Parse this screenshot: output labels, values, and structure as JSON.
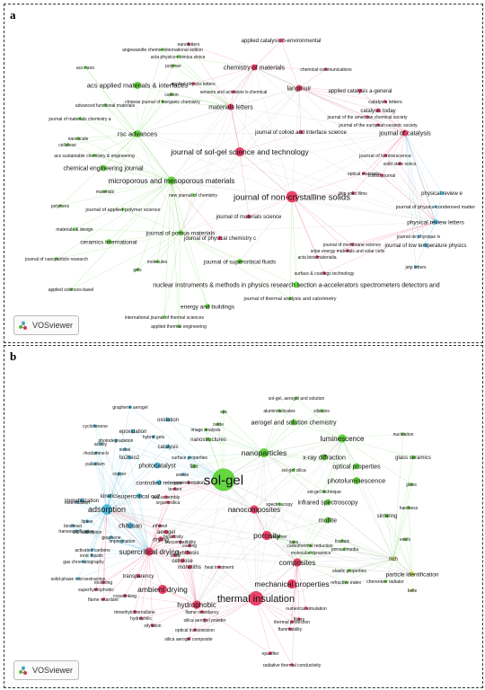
{
  "panels": [
    {
      "letter": "a",
      "brand": "VOSviewer",
      "colors": {
        "red": "#e8305a",
        "green": "#55d12e",
        "blue": "#41b6dc"
      },
      "labels": [
        {
          "t": "nanoletters",
          "c": "red",
          "s": 5
        },
        {
          "t": "applied catalysis b-environmental",
          "c": "red",
          "s": 6
        },
        {
          "t": "angewandte chemie-international edition",
          "c": "green",
          "s": 5
        },
        {
          "t": "acta physico-chimica sinica",
          "c": "green",
          "s": 5
        },
        {
          "t": "polymer",
          "c": "green",
          "s": 5
        },
        {
          "t": "acs nano",
          "c": "green",
          "s": 5
        },
        {
          "t": "chemistry of materials",
          "c": "red",
          "s": 7
        },
        {
          "t": "chemical communications",
          "c": "red",
          "s": 5
        },
        {
          "t": "acs applied materials & interfaces",
          "c": "green",
          "s": 7.5
        },
        {
          "t": "applied physics letters",
          "c": "red",
          "s": 5
        },
        {
          "t": "langmuir",
          "c": "red",
          "s": 7
        },
        {
          "t": "applied catalysis a-general",
          "c": "red",
          "s": 6
        },
        {
          "t": "carbon",
          "c": "green",
          "s": 5
        },
        {
          "t": "sensors and actuators b-chemical",
          "c": "red",
          "s": 5
        },
        {
          "t": "chinese journal of inorganic chemistry",
          "c": "green",
          "s": 5
        },
        {
          "t": "catalysis letters",
          "c": "red",
          "s": 5.5
        },
        {
          "t": "catalysis today",
          "c": "red",
          "s": 6
        },
        {
          "t": "advanced functional materials",
          "c": "green",
          "s": 5
        },
        {
          "t": "materials letters",
          "c": "red",
          "s": 7
        },
        {
          "t": "journal of the american chemical society",
          "c": "red",
          "s": 5
        },
        {
          "t": "journal of materials chemistry a",
          "c": "green",
          "s": 5
        },
        {
          "t": "journal of the european ceramic society",
          "c": "red",
          "s": 5
        },
        {
          "t": "rsc advances",
          "c": "green",
          "s": 7.5
        },
        {
          "t": "journal of colloid and interface science",
          "c": "red",
          "s": 6
        },
        {
          "t": "journal of catalysis",
          "c": "red",
          "s": 7
        },
        {
          "t": "nanoscale",
          "c": "green",
          "s": 5
        },
        {
          "t": "cellulose",
          "c": "green",
          "s": 5
        },
        {
          "t": "acs sustainable chemistry & engineering",
          "c": "green",
          "s": 5
        },
        {
          "t": "journal of sol-gel science and technology",
          "c": "red",
          "s": 8.5
        },
        {
          "t": "journal of luminescence",
          "c": "red",
          "s": 5.5
        },
        {
          "t": "solid state ionics",
          "c": "red",
          "s": 5
        },
        {
          "t": "chemical engineering journal",
          "c": "green",
          "s": 7
        },
        {
          "t": "optical materials",
          "c": "red",
          "s": 5
        },
        {
          "t": "colloid journal",
          "c": "red",
          "s": 5
        },
        {
          "t": "microporous and mesoporous materials",
          "c": "green",
          "s": 8
        },
        {
          "t": "physical review e",
          "c": "blue",
          "s": 6
        },
        {
          "t": "materials",
          "c": "green",
          "s": 5
        },
        {
          "t": "journal of non-crystalline solids",
          "c": "red",
          "s": 9.5
        },
        {
          "t": "new journal of chemistry",
          "c": "green",
          "s": 5
        },
        {
          "t": "journal of physics-condensed matter",
          "c": "blue",
          "s": 5.5
        },
        {
          "t": "polymers",
          "c": "green",
          "s": 5
        },
        {
          "t": "journal of applied polymer science",
          "c": "green",
          "s": 5.5
        },
        {
          "t": "thin solid films",
          "c": "red",
          "s": 5
        },
        {
          "t": "journal of materials science",
          "c": "red",
          "s": 6
        },
        {
          "t": "physical review letters",
          "c": "blue",
          "s": 6.5
        },
        {
          "t": "journal of porous materials",
          "c": "green",
          "s": 6.5
        },
        {
          "t": "materials & design",
          "c": "green",
          "s": 5
        },
        {
          "t": "journal de physique iv",
          "c": "blue",
          "s": 5
        },
        {
          "t": "journal of physical chemistry c",
          "c": "red",
          "s": 6
        },
        {
          "t": "ceramics international",
          "c": "green",
          "s": 6.5
        },
        {
          "t": "journal of membrane science",
          "c": "red",
          "s": 5
        },
        {
          "t": "journal of low temperature physics",
          "c": "blue",
          "s": 6
        },
        {
          "t": "journal of nanoparticle research",
          "c": "green",
          "s": 5
        },
        {
          "t": "journal of supercritical fluids",
          "c": "green",
          "s": 6.5
        },
        {
          "t": "solar energy materials and solar cells",
          "c": "red",
          "s": 5
        },
        {
          "t": "molecules",
          "c": "green",
          "s": 5
        },
        {
          "t": "acta bioiomaterialia",
          "c": "red",
          "s": 5
        },
        {
          "t": "jetp letters",
          "c": "blue",
          "s": 5
        },
        {
          "t": "gels",
          "c": "green",
          "s": 5
        },
        {
          "t": "surface & coatings technology",
          "c": "red",
          "s": 5
        },
        {
          "t": "applied sciences-basel",
          "c": "green",
          "s": 5
        },
        {
          "t": "nuclear instruments & methods in physics research section a-accelerators spectrometers detectors and",
          "c": "green",
          "s": 7
        },
        {
          "t": "journal of thermal analysis and calorimetry",
          "c": "green",
          "s": 5.5
        },
        {
          "t": "energy and buildings",
          "c": "green",
          "s": 6.5
        },
        {
          "t": "international journal of thermal sciences",
          "c": "green",
          "s": 5
        },
        {
          "t": "applied thermal engineering",
          "c": "green",
          "s": 5
        }
      ]
    },
    {
      "letter": "b",
      "brand": "VOSviewer",
      "colors": {
        "red": "#e8305a",
        "green": "#55d12e",
        "blue": "#41b6dc",
        "yellow": "#c7db4c"
      },
      "labels": [
        {
          "t": "sol-gel, aerogel and solution",
          "c": "green",
          "s": 5
        },
        {
          "t": "graphene aerogel",
          "c": "blue",
          "s": 5
        },
        {
          "t": "xps",
          "c": "green",
          "s": 5
        },
        {
          "t": "aluminosilicates",
          "c": "green",
          "s": 5
        },
        {
          "t": "silicates",
          "c": "green",
          "s": 5
        },
        {
          "t": "oxidation",
          "c": "blue",
          "s": 6
        },
        {
          "t": "oxide",
          "c": "green",
          "s": 5
        },
        {
          "t": "aerogel and solution chemistry",
          "c": "green",
          "s": 7
        },
        {
          "t": "image analysis",
          "c": "green",
          "s": 5
        },
        {
          "t": "cyclohexene",
          "c": "blue",
          "s": 5
        },
        {
          "t": "epoxidation",
          "c": "blue",
          "s": 6
        },
        {
          "t": "hybrid gels",
          "c": "blue",
          "s": 5
        },
        {
          "t": "nanostructures",
          "c": "green",
          "s": 6
        },
        {
          "t": "luminescence",
          "c": "green",
          "s": 8
        },
        {
          "t": "nucleation",
          "c": "green",
          "s": 5
        },
        {
          "t": "acidity",
          "c": "blue",
          "s": 5
        },
        {
          "t": "photodegradation",
          "c": "blue",
          "s": 5
        },
        {
          "t": "catalysis",
          "c": "blue",
          "s": 6
        },
        {
          "t": "nanoparticles",
          "c": "green",
          "s": 8.5
        },
        {
          "t": "nickel",
          "c": "blue",
          "s": 5
        },
        {
          "t": "glass ceramics",
          "c": "green",
          "s": 6
        },
        {
          "t": "rhodamine-b",
          "c": "blue",
          "s": 5
        },
        {
          "t": "tio2/sio2",
          "c": "blue",
          "s": 6
        },
        {
          "t": "surface properties",
          "c": "blue",
          "s": 5
        },
        {
          "t": "x-ray diffraction",
          "c": "green",
          "s": 7
        },
        {
          "t": "palladium",
          "c": "blue",
          "s": 5
        },
        {
          "t": "photocatalyst",
          "c": "blue",
          "s": 7
        },
        {
          "t": "film",
          "c": "green",
          "s": 6
        },
        {
          "t": "optical properties",
          "c": "green",
          "s": 7
        },
        {
          "t": "copper",
          "c": "blue",
          "s": 5
        },
        {
          "t": "zeolite",
          "c": "blue",
          "s": 5
        },
        {
          "t": "sol-gel",
          "c": "green",
          "s": 15
        },
        {
          "t": "nanoindentation",
          "c": "red",
          "s": 5
        },
        {
          "t": "sol-gel silica",
          "c": "green",
          "s": 5
        },
        {
          "t": "controlled release",
          "c": "blue",
          "s": 6.5
        },
        {
          "t": "photoluminescence",
          "c": "green",
          "s": 7.5
        },
        {
          "t": "glass",
          "c": "green",
          "s": 5
        },
        {
          "t": "texture",
          "c": "red",
          "s": 5
        },
        {
          "t": "sol-gel technique",
          "c": "green",
          "s": 5
        },
        {
          "t": "kinetics",
          "c": "blue",
          "s": 6
        },
        {
          "t": "supercritical co2",
          "c": "blue",
          "s": 6.5
        },
        {
          "t": "immobilization",
          "c": "blue",
          "s": 6
        },
        {
          "t": "self-assembly",
          "c": "red",
          "s": 5
        },
        {
          "t": "infrared spectroscopy",
          "c": "green",
          "s": 7
        },
        {
          "t": "esterification",
          "c": "blue",
          "s": 5
        },
        {
          "t": "organosilica",
          "c": "red",
          "s": 5
        },
        {
          "t": "spectroscopy",
          "c": "green",
          "s": 5
        },
        {
          "t": "hardness",
          "c": "green",
          "s": 5
        },
        {
          "t": "adsorption",
          "c": "blue",
          "s": 9
        },
        {
          "t": "nanocomposites",
          "c": "red",
          "s": 8
        },
        {
          "t": "mullite",
          "c": "green",
          "s": 7
        },
        {
          "t": "sintering",
          "c": "green",
          "s": 6
        },
        {
          "t": "lipase",
          "c": "blue",
          "s": 5
        },
        {
          "t": "biodiesel",
          "c": "blue",
          "s": 5
        },
        {
          "t": "transesterification",
          "c": "blue",
          "s": 5
        },
        {
          "t": "chitosan",
          "c": "blue",
          "s": 7
        },
        {
          "t": "ethanol",
          "c": "red",
          "s": 5
        },
        {
          "t": "co2 adsorption",
          "c": "blue",
          "s": 5
        },
        {
          "t": "aerogel",
          "c": "red",
          "s": 6
        },
        {
          "t": "bioactivity",
          "c": "red",
          "s": 5
        },
        {
          "t": "polymer",
          "c": "green",
          "s": 5
        },
        {
          "t": "saxs",
          "c": "green",
          "s": 5
        },
        {
          "t": "graphene",
          "c": "blue",
          "s": 5
        },
        {
          "t": "drying",
          "c": "red",
          "s": 6.5
        },
        {
          "t": "porosity",
          "c": "red",
          "s": 8.5
        },
        {
          "t": "exafs",
          "c": "green",
          "s": 5
        },
        {
          "t": "impregnation",
          "c": "blue",
          "s": 5
        },
        {
          "t": "biocompatibility",
          "c": "red",
          "s": 5
        },
        {
          "t": "carbothermal reduction",
          "c": "green",
          "s": 5
        },
        {
          "t": "fractals",
          "c": "green",
          "s": 5
        },
        {
          "t": "activated carbons",
          "c": "blue",
          "s": 5
        },
        {
          "t": "coating",
          "c": "red",
          "s": 5
        },
        {
          "t": "porous media",
          "c": "green",
          "s": 5
        },
        {
          "t": "supercritical drying",
          "c": "red",
          "s": 8
        },
        {
          "t": "synthesis",
          "c": "red",
          "s": 6
        },
        {
          "t": "molecular dynamics",
          "c": "green",
          "s": 5
        },
        {
          "t": "ionic liquids",
          "c": "blue",
          "s": 5
        },
        {
          "t": "silica",
          "c": "red",
          "s": 5
        },
        {
          "t": "rich",
          "c": "yellow",
          "s": 6
        },
        {
          "t": "gas chromatography",
          "c": "blue",
          "s": 5
        },
        {
          "t": "cellulose",
          "c": "red",
          "s": 6
        },
        {
          "t": "composites",
          "c": "red",
          "s": 8
        },
        {
          "t": "monoliths",
          "c": "red",
          "s": 6
        },
        {
          "t": "heat treatment",
          "c": "red",
          "s": 5
        },
        {
          "t": "elastic properties",
          "c": "green",
          "s": 5
        },
        {
          "t": "solid-phase microextraction",
          "c": "blue",
          "s": 5
        },
        {
          "t": "modeling",
          "c": "red",
          "s": 5
        },
        {
          "t": "transparency",
          "c": "red",
          "s": 6
        },
        {
          "t": "refractive index",
          "c": "green",
          "s": 5
        },
        {
          "t": "particle identification",
          "c": "yellow",
          "s": 6.5
        },
        {
          "t": "mechanical properties",
          "c": "red",
          "s": 8.5
        },
        {
          "t": "cherenkov radiator",
          "c": "green",
          "s": 5
        },
        {
          "t": "superhydrophobic",
          "c": "red",
          "s": 5
        },
        {
          "t": "ambient drying",
          "c": "red",
          "s": 8.5
        },
        {
          "t": "belle",
          "c": "yellow",
          "s": 5
        },
        {
          "t": "crosslinking",
          "c": "red",
          "s": 5
        },
        {
          "t": "thermal insulation",
          "c": "red",
          "s": 11
        },
        {
          "t": "flame retardant",
          "c": "red",
          "s": 5
        },
        {
          "t": "hydrophobic",
          "c": "red",
          "s": 8
        },
        {
          "t": "trimethylchlorosilane",
          "c": "red",
          "s": 5
        },
        {
          "t": "numerical simulation",
          "c": "red",
          "s": 5
        },
        {
          "t": "flame retardancy",
          "c": "red",
          "s": 5
        },
        {
          "t": "fibers",
          "c": "red",
          "s": 5
        },
        {
          "t": "hydrophilic",
          "c": "red",
          "s": 5
        },
        {
          "t": "silylation",
          "c": "red",
          "s": 5
        },
        {
          "t": "silica aerogel powder",
          "c": "red",
          "s": 5
        },
        {
          "t": "thermal protection",
          "c": "red",
          "s": 5
        },
        {
          "t": "flammability",
          "c": "red",
          "s": 5
        },
        {
          "t": "optical transmission",
          "c": "red",
          "s": 5
        },
        {
          "t": "silica aerogel composite",
          "c": "red",
          "s": 5
        },
        {
          "t": "opacifier",
          "c": "red",
          "s": 5
        },
        {
          "t": "radiative thermal conductivity",
          "c": "red",
          "s": 5
        }
      ]
    }
  ]
}
